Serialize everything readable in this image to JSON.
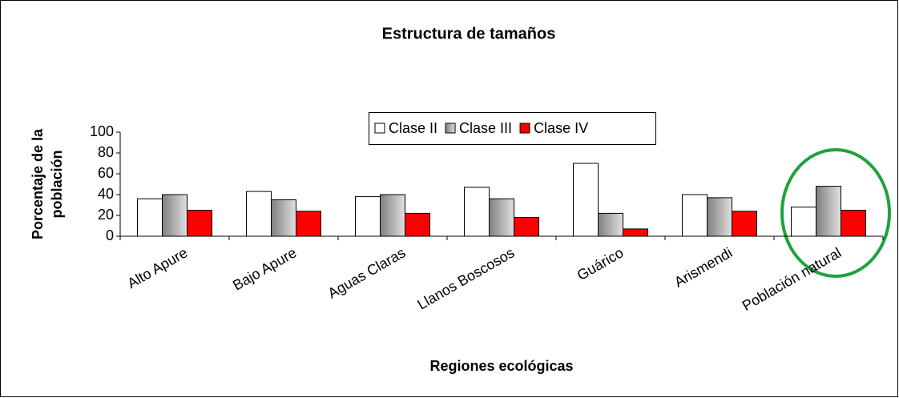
{
  "chart_data": {
    "type": "bar",
    "title": "Estructura de tamaños",
    "xlabel": "Regiones ecológicas",
    "ylabel": [
      "Porcentaje de la",
      "población"
    ],
    "categories": [
      "Alto Apure",
      "Bajo Apure",
      "Aguas Claras",
      "Llanos Boscosos",
      "Guárico",
      "Arismendi",
      "Población natural"
    ],
    "series": [
      {
        "name": "Clase II",
        "color": "#ffffff",
        "values": [
          36,
          43,
          38,
          47,
          70,
          40,
          28
        ]
      },
      {
        "name": "Clase III",
        "color": "#808080",
        "values": [
          40,
          35,
          40,
          36,
          22,
          37,
          48
        ]
      },
      {
        "name": "Clase IV",
        "color": "#ff0000",
        "values": [
          25,
          24,
          22,
          18,
          7,
          24,
          25
        ]
      }
    ],
    "ylim": [
      0,
      100
    ],
    "yticks": [
      0,
      20,
      40,
      60,
      80,
      100
    ],
    "grid": false
  }
}
